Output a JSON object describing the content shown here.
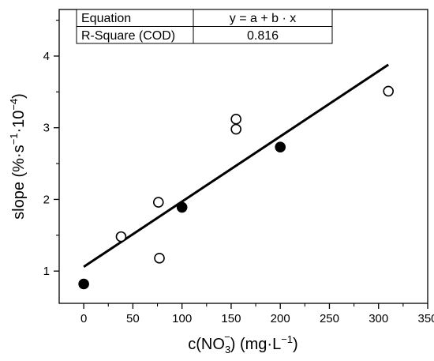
{
  "chart_data": {
    "type": "scatter",
    "title": "",
    "xlabel": {
      "prefix": "c(NO",
      "sub": "3",
      "sup": "−",
      "suffix": ") (mg·L",
      "sup2": "−1",
      "end": ")"
    },
    "ylabel": {
      "prefix": "slope (%·s",
      "sup": "−1",
      "mid": "·10",
      "sup2": "−4",
      "end": ")"
    },
    "xlim": [
      -25,
      350
    ],
    "ylim": [
      0.55,
      4.65
    ],
    "xticks": [
      0,
      50,
      100,
      150,
      200,
      250,
      300,
      350
    ],
    "yticks": [
      1,
      2,
      3,
      4
    ],
    "grid": false,
    "series": [
      {
        "marker": "open-circle",
        "points": [
          [
            38,
            1.48
          ],
          [
            76,
            1.96
          ],
          [
            77,
            1.18
          ],
          [
            155,
            3.12
          ],
          [
            155,
            2.98
          ],
          [
            310,
            3.51
          ]
        ]
      },
      {
        "marker": "filled-circle",
        "points": [
          [
            0,
            0.82
          ],
          [
            100,
            1.89
          ],
          [
            200,
            2.73
          ]
        ]
      }
    ],
    "fit": {
      "x": [
        0,
        310
      ],
      "y": [
        1.06,
        3.88
      ]
    }
  },
  "table": {
    "rows": [
      {
        "label": "Equation",
        "value": "y = a + b · x"
      },
      {
        "label": "R-Square (COD)",
        "value": "0.816"
      }
    ]
  }
}
